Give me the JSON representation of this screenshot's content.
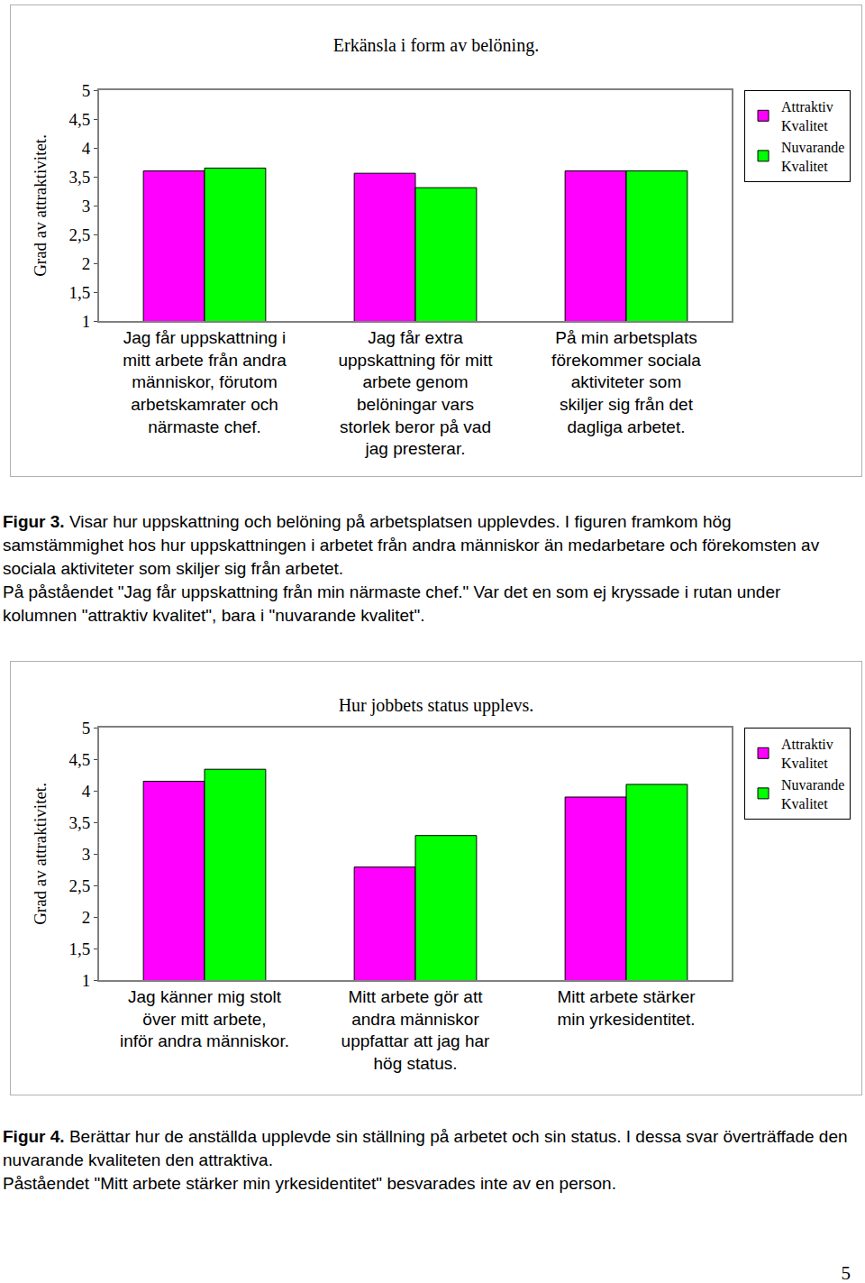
{
  "chart_data": [
    {
      "type": "bar",
      "title": "Erkänsla i form av belöning.",
      "y_label": "Grad av attraktivitet.",
      "categories": [
        "Jag får uppskattning i mitt arbete från andra människor, förutom arbetskamrater och närmaste chef.",
        "Jag får extra uppskattning för mitt arbete genom belöningar vars storlek beror på vad jag presterar.",
        "På min arbetsplats förekommer sociala aktiviteter som skiljer sig från det dagliga arbetet."
      ],
      "series": [
        {
          "name": "Attraktiv Kvalitet",
          "color": "#ff00ff",
          "values": [
            3.6,
            3.56,
            3.6
          ]
        },
        {
          "name": "Nuvarande Kvalitet",
          "color": "#00ff00",
          "values": [
            3.65,
            3.31,
            3.6
          ]
        }
      ],
      "ylim": [
        1,
        5
      ],
      "yticks": [
        1,
        {
          "value": 1.5,
          "label": "1,5"
        },
        2,
        {
          "value": 2.5,
          "label": "2,5"
        },
        3,
        {
          "value": 3.5,
          "label": "3,5"
        },
        4,
        {
          "value": 4.5,
          "label": "4,5"
        },
        5
      ],
      "grid": false,
      "legend": "right"
    },
    {
      "type": "bar",
      "title": "Hur jobbets status upplevs.",
      "y_label": "Grad av attraktivitet.",
      "categories": [
        "Jag känner mig stolt över mitt arbete, inför andra människor.",
        "Mitt arbete gör att andra människor uppfattar att jag har hög status.",
        "Mitt arbete stärker min yrkesidentitet."
      ],
      "series": [
        {
          "name": "Attraktiv Kvalitet",
          "color": "#ff00ff",
          "values": [
            4.15,
            2.79,
            3.9
          ]
        },
        {
          "name": "Nuvarande Kvalitet",
          "color": "#00ff00",
          "values": [
            4.34,
            3.29,
            4.1
          ]
        }
      ],
      "ylim": [
        1,
        5
      ],
      "yticks": [
        1,
        {
          "value": 1.5,
          "label": "1,5"
        },
        2,
        {
          "value": 2.5,
          "label": "2,5"
        },
        3,
        {
          "value": 3.5,
          "label": "3,5"
        },
        4,
        {
          "value": 4.5,
          "label": "4,5"
        },
        5
      ],
      "grid": false,
      "legend": "right"
    }
  ],
  "captions": [
    {
      "label": "Figur 3.",
      "paragraphs": [
        "Visar hur uppskattning och belöning på arbetsplatsen upplevdes. I figuren framkom hög samstämmighet hos hur uppskattningen i arbetet från andra människor än medarbetare och förekomsten av sociala aktiviteter som skiljer sig från arbetet.",
        "På påståendet \"Jag får uppskattning från min närmaste chef.\" Var det en som ej kryssade i rutan under kolumnen \"attraktiv kvalitet\", bara i \"nuvarande kvalitet\"."
      ]
    },
    {
      "label": "Figur 4.",
      "paragraphs": [
        "Berättar hur de anställda upplevde sin ställning på arbetet och sin status. I dessa svar överträffade den nuvarande kvaliteten den attraktiva.",
        "Påståendet \"Mitt arbete stärker min yrkesidentitet\" besvarades inte av en person."
      ]
    }
  ],
  "page_number": "5"
}
